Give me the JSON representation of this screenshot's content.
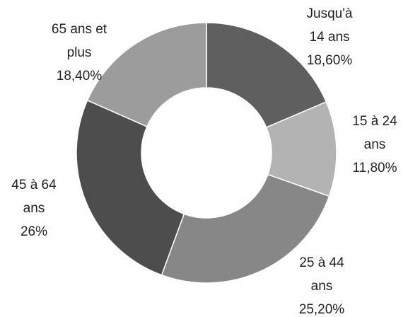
{
  "chart_data": {
    "type": "donut",
    "categories": [
      "Jusqu'à 14 ans",
      "15 à 24 ans",
      "25 à 44 ans",
      "45 à 64 ans",
      "65 ans et plus"
    ],
    "values": [
      18.6,
      11.8,
      25.2,
      26,
      18.4
    ],
    "value_labels": [
      "18,60%",
      "11,80%",
      "25,20%",
      "26%",
      "18,40%"
    ],
    "colors": [
      "#5f5f5f",
      "#b3b3b3",
      "#878787",
      "#4d4d4d",
      "#9c9c9c"
    ]
  }
}
